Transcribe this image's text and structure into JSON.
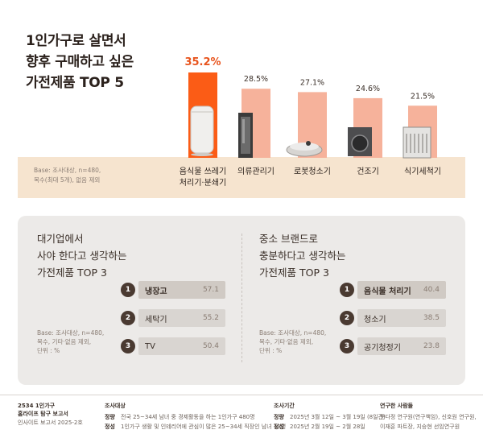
{
  "title_lines": [
    "1인가구로 살면서",
    "향후 구매하고 싶은",
    "가전제품 TOP 5"
  ],
  "base_note": [
    "Base: 조사대상, n=480,",
    "복수(최대 5개), 없음 제외"
  ],
  "colors": {
    "highlight": "#fb5c16",
    "bar": "#f6b29b",
    "accent_text": "#e8541d",
    "base_band": "#f6e4cf"
  },
  "chart_data": {
    "type": "bar",
    "title": "1인가구로 살면서 향후 구매하고 싶은 가전제품 TOP 5",
    "unit": "%",
    "categories": [
      [
        "음식물 쓰레기",
        "처리기·분쇄기"
      ],
      [
        "의류관리기"
      ],
      [
        "로봇청소기"
      ],
      [
        "건조기"
      ],
      [
        "식기세척기"
      ]
    ],
    "values": [
      35.2,
      28.5,
      27.1,
      24.6,
      21.5
    ],
    "value_labels": [
      "35.2%",
      "28.5%",
      "27.1%",
      "24.6%",
      "21.5%"
    ],
    "icons": [
      "food-waste-disposer-icon",
      "clothing-care-icon",
      "robot-vacuum-icon",
      "dryer-icon",
      "dishwasher-icon"
    ],
    "ylim": [
      0,
      35.2
    ],
    "grid": false,
    "legend": "none"
  },
  "left_panel": {
    "title": [
      "대기업에서",
      "사야 한다고 생각하는",
      "가전제품 TOP 3"
    ],
    "note": [
      "Base: 조사대상, n=480,",
      "복수, 기타·없음 제외,",
      "단위 : %"
    ],
    "items": [
      {
        "rank": "1",
        "name": "냉장고",
        "value": "57.1"
      },
      {
        "rank": "2",
        "name": "세탁기",
        "value": "55.2"
      },
      {
        "rank": "3",
        "name": "TV",
        "value": "50.4"
      }
    ]
  },
  "right_panel": {
    "title": [
      "중소 브랜드로",
      "충분하다고 생각하는",
      "가전제품 TOP 3"
    ],
    "note": [
      "Base: 조사대상, n=480,",
      "복수, 기타·없음 제외,",
      "단위 : %"
    ],
    "items": [
      {
        "rank": "1",
        "name": "음식물 처리기",
        "value": "40.4"
      },
      {
        "rank": "2",
        "name": "청소기",
        "value": "38.5"
      },
      {
        "rank": "3",
        "name": "공기청정기",
        "value": "23.8"
      }
    ]
  },
  "footer": {
    "report": [
      "2534 1인가구",
      "홈라이프 탐구 보고서",
      "인사이트 보고서 2025-2호"
    ],
    "target_label": "조사대상",
    "target_rows": [
      {
        "k": "정량",
        "v": "전국 25~34세 남녀 중 경제활동을 하는 1인가구 480명"
      },
      {
        "k": "정성",
        "v": "1인가구 생활 및 인테리어에 관심이 많은 25~34세 직장인 남녀 10명"
      }
    ],
    "period_label": "조사기간",
    "period_rows": [
      {
        "k": "정량",
        "v": "2025년 3월 12일 ~ 3월 19일 (8일간)"
      },
      {
        "k": "정성",
        "v": "2025년 2월 19일 ~ 2월 28일"
      }
    ],
    "people_label": "연구한 사람들",
    "people": [
      "문다정 연구원(연구책임), 신호원 연구원,",
      "이재훈 파트장, 지승현 선임연구원"
    ]
  }
}
